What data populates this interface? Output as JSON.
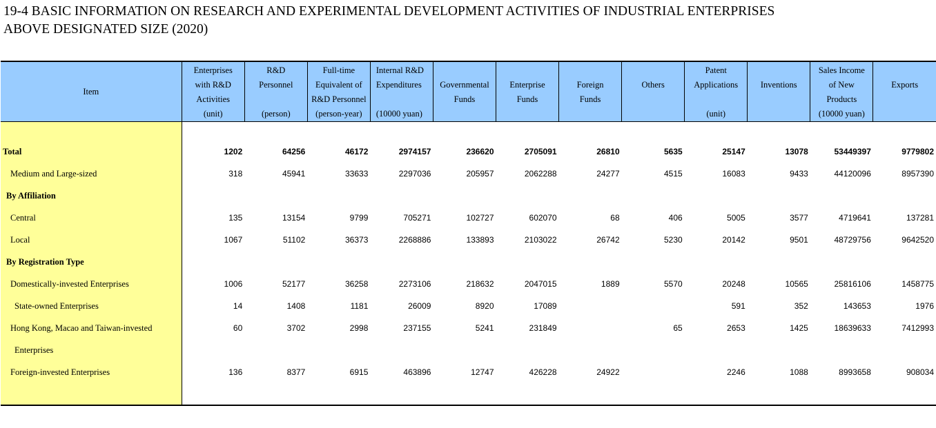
{
  "title": {
    "line1": "19-4  BASIC INFORMATION ON RESEARCH AND EXPERIMENTAL DEVELOPMENT ACTIVITIES OF INDUSTRIAL ENTERPRISES",
    "line2": "ABOVE DESIGNATED SIZE (2020)"
  },
  "header": {
    "item": "Item",
    "enterprises": [
      "Enterprises",
      "with R&D",
      "Activities",
      "(unit)"
    ],
    "personnel": [
      "R&D",
      "Personnel",
      "",
      "(person)"
    ],
    "fte": [
      "Full-time",
      "Equivalent of",
      "R&D Personnel",
      "(person-year)"
    ],
    "internal": [
      "Internal R&D",
      "Expenditures",
      "",
      "(10000 yuan)"
    ],
    "gov": [
      "",
      "Governmental",
      "Funds",
      ""
    ],
    "ent": [
      "",
      "Enterprise",
      "Funds",
      ""
    ],
    "foreign": [
      "",
      "Foreign",
      "Funds",
      ""
    ],
    "others": [
      "",
      "Others",
      "",
      ""
    ],
    "patent": [
      "Patent",
      "Applications",
      "",
      "(unit)"
    ],
    "inventions": [
      "",
      "Inventions",
      "",
      ""
    ],
    "sales": [
      "Sales Income",
      "of New",
      "Products",
      "(10000 yuan)"
    ],
    "exports": [
      "",
      "Exports",
      "",
      ""
    ]
  },
  "rows": [
    {
      "label": "Total",
      "bold": true,
      "indent": 0,
      "values": [
        "1202",
        "64256",
        "46172",
        "2974157",
        "236620",
        "2705091",
        "26810",
        "5635",
        "25147",
        "13078",
        "53449397",
        "9779802"
      ]
    },
    {
      "label": "Medium and Large-sized",
      "bold": false,
      "indent": 1,
      "values": [
        "318",
        "45941",
        "33633",
        "2297036",
        "205957",
        "2062288",
        "24277",
        "4515",
        "16083",
        "9433",
        "44120096",
        "8957390"
      ]
    },
    {
      "label": "By Affiliation",
      "bold": true,
      "indent": 1,
      "values": [
        "",
        "",
        "",
        "",
        "",
        "",
        "",
        "",
        "",
        "",
        "",
        ""
      ]
    },
    {
      "label": "Central",
      "bold": false,
      "indent": 1,
      "values": [
        "135",
        "13154",
        "9799",
        "705271",
        "102727",
        "602070",
        "68",
        "406",
        "5005",
        "3577",
        "4719641",
        "137281"
      ]
    },
    {
      "label": "Local",
      "bold": false,
      "indent": 1,
      "values": [
        "1067",
        "51102",
        "36373",
        "2268886",
        "133893",
        "2103022",
        "26742",
        "5230",
        "20142",
        "9501",
        "48729756",
        "9642520"
      ]
    },
    {
      "label": "By Registration Type",
      "bold": true,
      "indent": 1,
      "values": [
        "",
        "",
        "",
        "",
        "",
        "",
        "",
        "",
        "",
        "",
        "",
        ""
      ]
    },
    {
      "label": "Domestically-invested Enterprises",
      "bold": false,
      "indent": 1,
      "values": [
        "1006",
        "52177",
        "36258",
        "2273106",
        "218632",
        "2047015",
        "1889",
        "5570",
        "20248",
        "10565",
        "25816106",
        "1458775"
      ]
    },
    {
      "label": "State-owned Enterprises",
      "bold": false,
      "indent": 2,
      "values": [
        "14",
        "1408",
        "1181",
        "26009",
        "8920",
        "17089",
        "",
        "",
        "591",
        "352",
        "143653",
        "1976"
      ]
    },
    {
      "label": "Hong Kong, Macao and Taiwan-invested",
      "bold": false,
      "indent": 1,
      "values": [
        "60",
        "3702",
        "2998",
        "237155",
        "5241",
        "231849",
        "",
        "65",
        "2653",
        "1425",
        "18639633",
        "7412993"
      ]
    },
    {
      "label": "Enterprises",
      "bold": false,
      "indent": 2,
      "values": [
        "",
        "",
        "",
        "",
        "",
        "",
        "",
        "",
        "",
        "",
        "",
        ""
      ]
    },
    {
      "label": "Foreign-invested Enterprises",
      "bold": false,
      "indent": 1,
      "values": [
        "136",
        "8377",
        "6915",
        "463896",
        "12747",
        "426228",
        "24922",
        "",
        "2246",
        "1088",
        "8993658",
        "908034"
      ]
    }
  ]
}
